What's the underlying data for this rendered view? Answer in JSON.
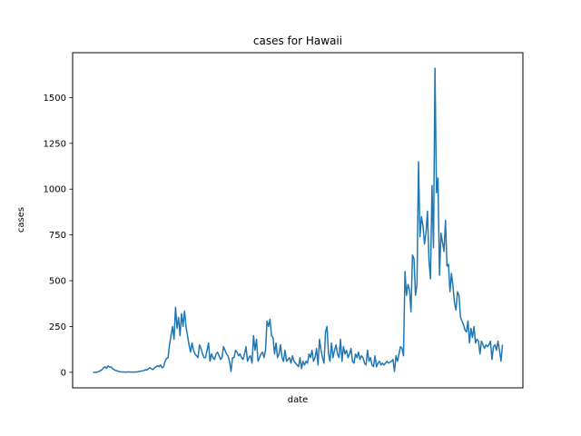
{
  "chart_data": {
    "type": "line",
    "title": "cases for Hawaii",
    "xlabel": "date",
    "ylabel": "cases",
    "ylim": [
      -85,
      1745
    ],
    "yticks": [
      0,
      250,
      500,
      750,
      1000,
      1250,
      1500
    ],
    "ytick_labels": [
      "0",
      "250",
      "500",
      "750",
      "1000",
      "1250",
      "1500"
    ],
    "grid": false,
    "legend": "none",
    "series": [
      {
        "color": "#1f77b4",
        "y": [
          0,
          0,
          0,
          2,
          5,
          10,
          15,
          25,
          30,
          22,
          35,
          28,
          30,
          20,
          15,
          10,
          8,
          5,
          3,
          2,
          2,
          1,
          1,
          2,
          2,
          1,
          1,
          1,
          2,
          2,
          3,
          5,
          6,
          8,
          10,
          15,
          12,
          20,
          25,
          18,
          15,
          25,
          30,
          35,
          30,
          40,
          25,
          30,
          60,
          75,
          80,
          150,
          200,
          250,
          180,
          355,
          240,
          300,
          200,
          320,
          250,
          335,
          250,
          200,
          150,
          110,
          160,
          120,
          100,
          90,
          80,
          150,
          130,
          100,
          80,
          80,
          120,
          160,
          60,
          100,
          80,
          70,
          100,
          110,
          90,
          70,
          80,
          140,
          120,
          100,
          90,
          60,
          5,
          80,
          80,
          120,
          110,
          90,
          100,
          80,
          70,
          100,
          140,
          60,
          80,
          90,
          50,
          200,
          120,
          180,
          60,
          80,
          100,
          110,
          80,
          120,
          280,
          250,
          290,
          200,
          190,
          100,
          160,
          80,
          100,
          150,
          80,
          60,
          120,
          60,
          70,
          80,
          50,
          90,
          60,
          50,
          40,
          30,
          80,
          20,
          60,
          40,
          60,
          50,
          100,
          80,
          120,
          60,
          80,
          130,
          40,
          180,
          120,
          80,
          50,
          220,
          250,
          100,
          60,
          160,
          80,
          120,
          150,
          100,
          80,
          180,
          60,
          140,
          100,
          120,
          80,
          100,
          130,
          60,
          50,
          100,
          80,
          110,
          70,
          90,
          80,
          50,
          40,
          120,
          60,
          80,
          40,
          30,
          90,
          30,
          50,
          60,
          40,
          50,
          40,
          50,
          60,
          50,
          55,
          60,
          70,
          5,
          90,
          60,
          100,
          140,
          130,
          90,
          550,
          420,
          480,
          450,
          330,
          640,
          620,
          420,
          480,
          1150,
          740,
          850,
          800,
          700,
          760,
          880,
          610,
          510,
          1020,
          680,
          1660,
          980,
          1060,
          530,
          760,
          710,
          660,
          830,
          580,
          590,
          440,
          540,
          470,
          380,
          340,
          440,
          420,
          300,
          280,
          260,
          230,
          220,
          280,
          160,
          240,
          190,
          250,
          160,
          180,
          170,
          100,
          170,
          150,
          130,
          150,
          140,
          150,
          170,
          70,
          140,
          150,
          120,
          170,
          120,
          60,
          150
        ]
      }
    ]
  }
}
